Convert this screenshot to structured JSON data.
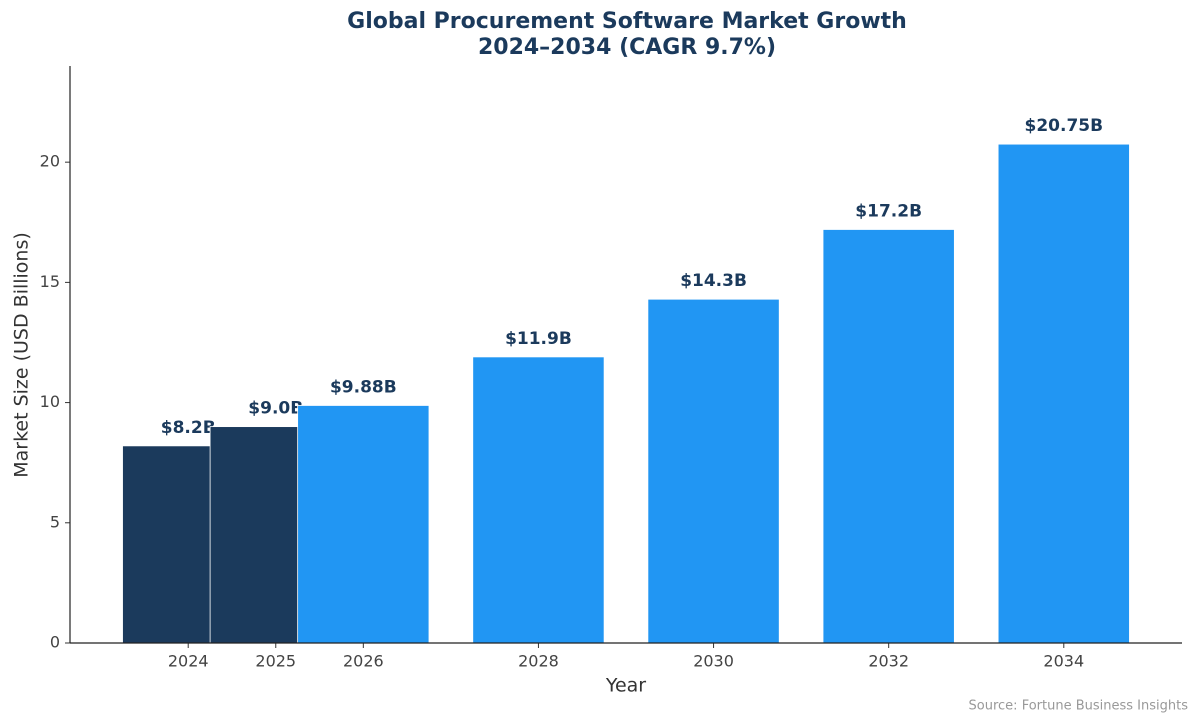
{
  "chart_data": {
    "type": "bar",
    "title": [
      "Global Procurement Software Market Growth",
      "2024–2034 (CAGR 9.7%)"
    ],
    "x_label": "Year",
    "y_label": "Market Size (USD Billions)",
    "source": "Source: Fortune Business Insights",
    "x": [
      2024,
      2025,
      2026,
      2028,
      2030,
      2032,
      2034
    ],
    "values": [
      8.2,
      9.0,
      9.88,
      11.9,
      14.3,
      17.2,
      20.75
    ],
    "value_labels": [
      "$8.2B",
      "$9.0B",
      "$9.88B",
      "$11.9B",
      "$14.3B",
      "$17.2B",
      "$20.75B"
    ],
    "colors": [
      "#1b3a5c",
      "#1b3a5c",
      "#2196f3",
      "#2196f3",
      "#2196f3",
      "#2196f3",
      "#2196f3"
    ],
    "xlim": [
      2022.65,
      2035.35
    ],
    "ylim": [
      0,
      24
    ],
    "xticks": [
      2024,
      2025,
      2026,
      2028,
      2030,
      2032,
      2034
    ],
    "yticks": [
      0,
      5,
      10,
      15,
      20
    ],
    "grid": false
  }
}
